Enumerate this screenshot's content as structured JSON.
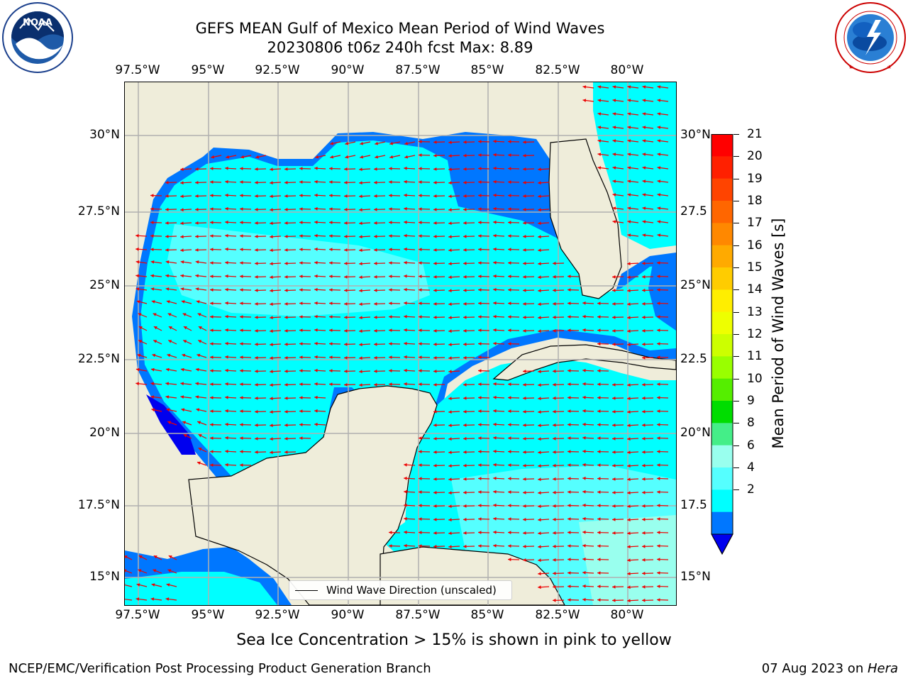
{
  "title": {
    "line1": "GEFS MEAN Gulf of Mexico Mean Period of Wind Waves",
    "line2": "20230806 t06z 240h fcst   Max: 8.89"
  },
  "logos": {
    "noaa": {
      "text": "NOAA",
      "ring_text": "NATIONAL OCEANIC AND ATMOSPHERIC ADMINISTRATION · U.S. DEPARTMENT OF COMMERCE"
    },
    "nws": {
      "ring_text": "NATIONAL WEATHER SERVICE"
    }
  },
  "axes": {
    "lon_ticks": [
      "97.5°W",
      "95°W",
      "92.5°W",
      "90°W",
      "87.5°W",
      "85°W",
      "82.5°W",
      "80°W"
    ],
    "lat_ticks_left": [
      "30°N",
      "27.5°N",
      "25°N",
      "22.5°N",
      "20°N",
      "17.5°N",
      "15°N"
    ],
    "lat_ticks_right": [
      "30°N",
      "27.5",
      "25°N",
      "22.5",
      "20°N",
      "17.5",
      "15°N"
    ]
  },
  "colorbar": {
    "label": "Mean Period of Wind Waves [s]",
    "ticks": [
      "21",
      "20",
      "19",
      "18",
      "17",
      "16",
      "15",
      "14",
      "13",
      "12",
      "11",
      "10",
      "9",
      "8",
      "6",
      "4",
      "2"
    ],
    "colors": [
      "#ff0000",
      "#ff2000",
      "#ff4400",
      "#ff6600",
      "#ff8800",
      "#ffaa00",
      "#ffcc00",
      "#ffee00",
      "#eeff00",
      "#ccff00",
      "#99ff00",
      "#55ee00",
      "#00dd00",
      "#44ee88",
      "#99ffee",
      "#55ffff",
      "#00ffff",
      "#0077ff"
    ],
    "extend_color": "#0000ee"
  },
  "legend": {
    "label": "Wind Wave Direction (unscaled)"
  },
  "caption": "Sea Ice Concentration > 15% is shown in pink to yellow",
  "footer": {
    "left": "NCEP/EMC/Verification Post Processing Product Generation Branch",
    "date": "07 Aug 2023 on ",
    "host": "Hera"
  },
  "colors": {
    "land": "#efedda",
    "sea_main": "#00ffff",
    "sea_light": "#55ffff",
    "sea_deep": "#0077ff",
    "sea_deepest": "#0000ee",
    "arrow": "#ee0000"
  }
}
